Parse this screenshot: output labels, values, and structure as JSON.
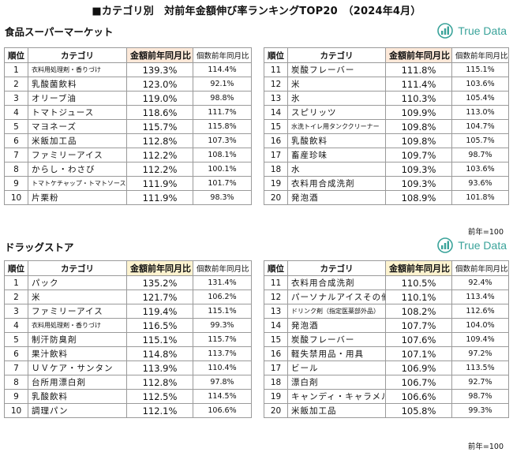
{
  "title": "■カテゴリ別　対前年金額伸び率ランキングTOP20　（2024年4月）",
  "logo_text": "True Data",
  "colors": {
    "logo": "#3aa39a",
    "food_header": "#fde9d9",
    "drug_header": "#fdf3cf"
  },
  "headers": {
    "rank": "順位",
    "category": "カテゴリ",
    "amount": "金額前年同月比",
    "count": "個数前年同月比"
  },
  "footnote": "前年=100",
  "food": {
    "section_title": "食品スーパーマーケット",
    "left": [
      {
        "rank": "1",
        "category": "衣料用処理剤・香りづけ",
        "amount": "139.3%",
        "count": "114.4%",
        "small": true
      },
      {
        "rank": "2",
        "category": "乳酸菌飲料",
        "amount": "123.0%",
        "count": "92.1%"
      },
      {
        "rank": "3",
        "category": "オリーブ油",
        "amount": "119.0%",
        "count": "98.8%"
      },
      {
        "rank": "4",
        "category": "トマトジュース",
        "amount": "118.6%",
        "count": "111.7%"
      },
      {
        "rank": "5",
        "category": "マヨネーズ",
        "amount": "115.7%",
        "count": "115.8%"
      },
      {
        "rank": "6",
        "category": "米飯加工品",
        "amount": "112.8%",
        "count": "107.3%"
      },
      {
        "rank": "7",
        "category": "ファミリーアイス",
        "amount": "112.2%",
        "count": "108.1%"
      },
      {
        "rank": "8",
        "category": "からし・わさび",
        "amount": "112.2%",
        "count": "100.1%"
      },
      {
        "rank": "9",
        "category": "トマトケチャップ・トマトソース",
        "amount": "111.9%",
        "count": "101.7%",
        "small": true
      },
      {
        "rank": "10",
        "category": "片栗粉",
        "amount": "111.9%",
        "count": "98.3%"
      }
    ],
    "right": [
      {
        "rank": "11",
        "category": "炭酸フレーバー",
        "amount": "111.8%",
        "count": "115.1%"
      },
      {
        "rank": "12",
        "category": "米",
        "amount": "111.4%",
        "count": "103.6%"
      },
      {
        "rank": "13",
        "category": "氷",
        "amount": "110.3%",
        "count": "105.4%"
      },
      {
        "rank": "14",
        "category": "スピリッツ",
        "amount": "109.9%",
        "count": "113.0%"
      },
      {
        "rank": "15",
        "category": "水洗トイレ用タンククリーナー",
        "amount": "109.8%",
        "count": "104.7%",
        "small": true
      },
      {
        "rank": "16",
        "category": "乳酸飲料",
        "amount": "109.8%",
        "count": "105.7%"
      },
      {
        "rank": "17",
        "category": "畜産珍味",
        "amount": "109.7%",
        "count": "98.7%"
      },
      {
        "rank": "18",
        "category": "水",
        "amount": "109.3%",
        "count": "103.6%"
      },
      {
        "rank": "19",
        "category": "衣料用合成洗剤",
        "amount": "109.3%",
        "count": "93.6%"
      },
      {
        "rank": "20",
        "category": "発泡酒",
        "amount": "108.9%",
        "count": "101.8%"
      }
    ]
  },
  "drug": {
    "section_title": "ドラッグストア",
    "left": [
      {
        "rank": "1",
        "category": "パック",
        "amount": "135.2%",
        "count": "131.4%"
      },
      {
        "rank": "2",
        "category": "米",
        "amount": "121.7%",
        "count": "106.2%"
      },
      {
        "rank": "3",
        "category": "ファミリーアイス",
        "amount": "119.4%",
        "count": "115.1%"
      },
      {
        "rank": "4",
        "category": "衣料用処理剤・香りづけ",
        "amount": "116.5%",
        "count": "99.3%",
        "small": true
      },
      {
        "rank": "5",
        "category": "制汗防臭剤",
        "amount": "115.1%",
        "count": "115.7%"
      },
      {
        "rank": "6",
        "category": "果汁飲料",
        "amount": "114.8%",
        "count": "113.7%"
      },
      {
        "rank": "7",
        "category": "ＵＶケア・サンタン",
        "amount": "113.9%",
        "count": "110.4%"
      },
      {
        "rank": "8",
        "category": "台所用漂白剤",
        "amount": "112.8%",
        "count": "97.8%"
      },
      {
        "rank": "9",
        "category": "乳酸飲料",
        "amount": "112.5%",
        "count": "114.5%"
      },
      {
        "rank": "10",
        "category": "調理パン",
        "amount": "112.1%",
        "count": "106.6%"
      }
    ],
    "right": [
      {
        "rank": "11",
        "category": "衣料用合成洗剤",
        "amount": "110.5%",
        "count": "92.4%"
      },
      {
        "rank": "12",
        "category": "パーソナルアイスその他",
        "amount": "110.1%",
        "count": "113.4%"
      },
      {
        "rank": "13",
        "category": "ドリンク剤（指定医薬部外品）",
        "amount": "108.2%",
        "count": "112.6%",
        "small": true
      },
      {
        "rank": "14",
        "category": "発泡酒",
        "amount": "107.7%",
        "count": "104.0%"
      },
      {
        "rank": "15",
        "category": "炭酸フレーバー",
        "amount": "107.6%",
        "count": "109.4%"
      },
      {
        "rank": "16",
        "category": "軽失禁用品・用具",
        "amount": "107.1%",
        "count": "97.2%"
      },
      {
        "rank": "17",
        "category": "ビール",
        "amount": "106.9%",
        "count": "113.5%"
      },
      {
        "rank": "18",
        "category": "漂白剤",
        "amount": "106.7%",
        "count": "92.7%"
      },
      {
        "rank": "19",
        "category": "キャンディ・キャラメル",
        "amount": "106.6%",
        "count": "98.7%"
      },
      {
        "rank": "20",
        "category": "米飯加工品",
        "amount": "105.8%",
        "count": "99.3%"
      }
    ]
  }
}
